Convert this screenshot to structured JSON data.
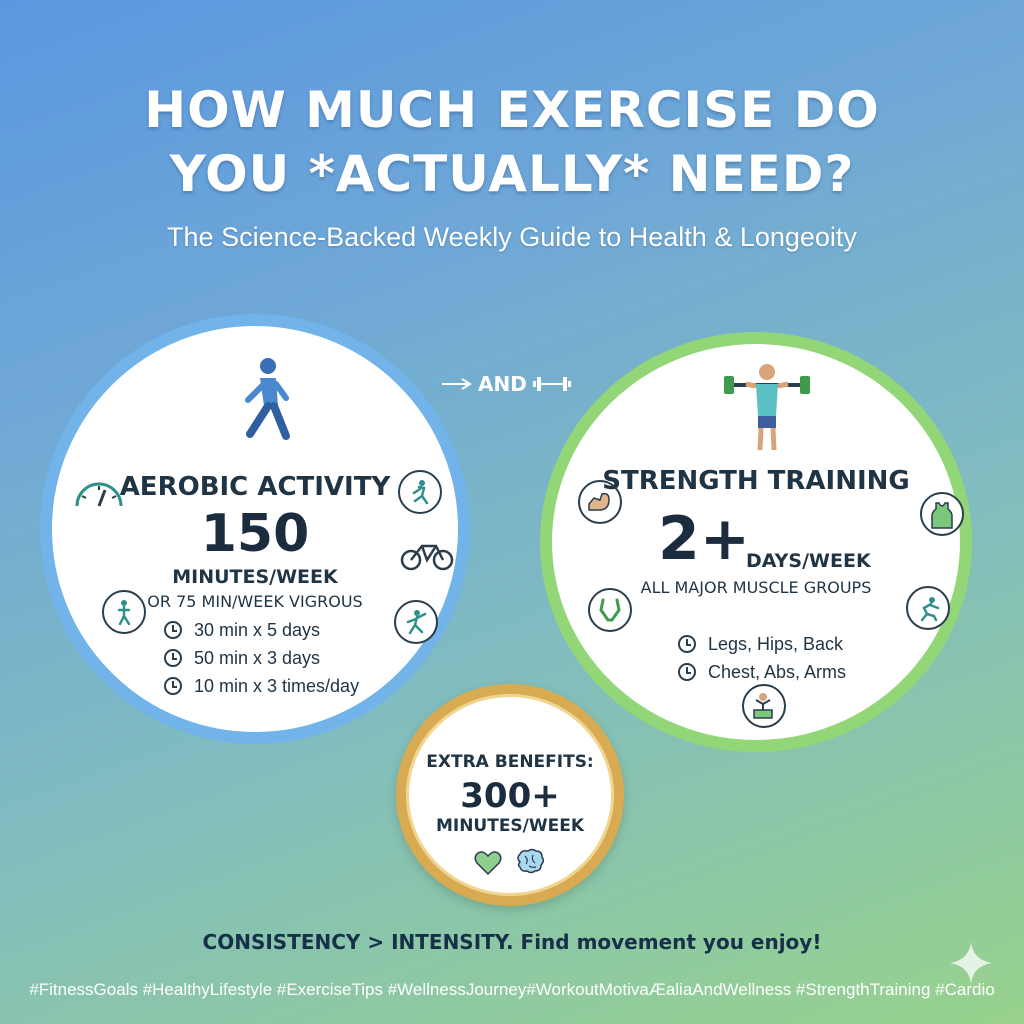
{
  "header": {
    "title_line1": "HOW MUCH EXERCISE DO",
    "title_line2": "YOU *ACTUALLY* NEED?",
    "subtitle": "The Science-Backed Weekly Guide to Health & Longeoity"
  },
  "connector": {
    "label": "AND"
  },
  "aerobic": {
    "heading": "AEROBIC ACTIVITY",
    "number": "150",
    "unit": "MINUTES/WEEK",
    "alternative": "OR 75 MIN/WEEK VIGROUS",
    "options": [
      "30 min x 5 days",
      "50 min x 3 days",
      "10 min x 3 times/day"
    ],
    "icons": [
      "walking-person-icon",
      "speedometer-icon",
      "running-icon",
      "bicycle-icon",
      "exercise-person-icon",
      "dancing-icon"
    ]
  },
  "strength": {
    "heading": "STRENGTH TRAINING",
    "number": "2+",
    "unit": "DAYS/WEEK",
    "subtext": "ALL MAJOR MUSCLE GROUPS",
    "groups": [
      "Legs, Hips, Back",
      "Chest, Abs, Arms"
    ],
    "icons": [
      "weightlifter-icon",
      "flexed-arm-icon",
      "tank-top-icon",
      "resistance-band-icon",
      "squat-icon",
      "bodyweight-icon"
    ]
  },
  "extra": {
    "heading": "EXTRA BENEFITS:",
    "number": "300+",
    "unit": "MINUTES/WEEK",
    "icons": [
      "heart-icon",
      "brain-icon"
    ]
  },
  "footer": {
    "message": "CONSISTENCY > INTENSITY. Find movement you enjoy!",
    "hashtags": "#FitnessGoals #HealthyLifestyle #ExerciseTips #WellnessJourney#WorkoutMotivaÆaliaAndWellness #StrengthTraining #Cardio"
  },
  "colors": {
    "aerobic_ring": "#72b3ea",
    "strength_ring": "#92d678",
    "extra_ring": "#d8ab52",
    "text_dark": "#1f3444",
    "icon_teal": "#2f8f8a"
  }
}
